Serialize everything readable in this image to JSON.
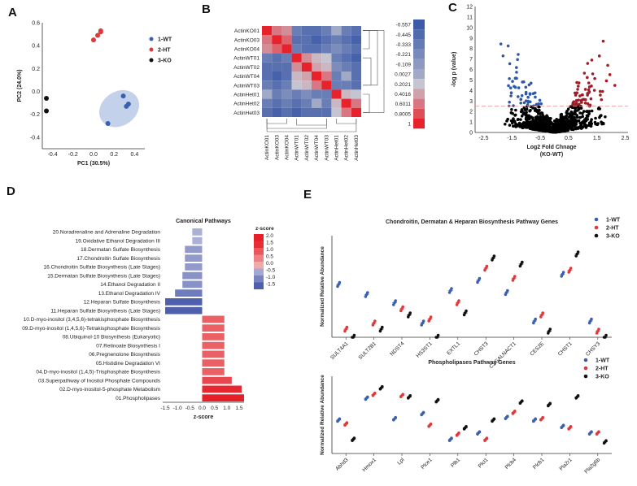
{
  "panel_labels": {
    "a": "A",
    "b": "B",
    "c": "C",
    "d": "D",
    "e": "E"
  },
  "colors": {
    "wt": "#3a5fb0",
    "ht": "#e0393b",
    "ko": "#111111",
    "heat_hi": "#e8222b",
    "heat_lo": "#3c5aa8"
  },
  "chart_data": [
    {
      "id": "pca",
      "type": "scatter",
      "xlabel": "PC1 (30.5%)",
      "ylabel": "PC2 (24.0%)",
      "xlim": [
        -0.5,
        0.5
      ],
      "ylim": [
        -0.5,
        0.6
      ],
      "xticks": [
        "-0.4",
        "-0.2",
        "0.0",
        "0.2",
        "0.4"
      ],
      "yticks": [
        "0.6",
        "0.4",
        "0.2",
        "0.0",
        "-0.2",
        "-0.4"
      ],
      "legend": [
        "1-WT",
        "2-HT",
        "3-KO"
      ],
      "series": [
        {
          "name": "1-WT",
          "points": [
            [
              0.29,
              -0.04
            ],
            [
              0.32,
              -0.13
            ],
            [
              0.34,
              -0.11
            ],
            [
              0.14,
              -0.28
            ]
          ]
        },
        {
          "name": "2-HT",
          "points": [
            [
              0.04,
              0.49
            ],
            [
              0.07,
              0.52
            ],
            [
              0.07,
              0.53
            ],
            [
              0.0,
              0.45
            ]
          ]
        },
        {
          "name": "3-KO",
          "points": [
            [
              -0.46,
              -0.06
            ],
            [
              -0.46,
              -0.17
            ]
          ]
        }
      ]
    },
    {
      "id": "heatmap",
      "type": "heatmap",
      "rows": [
        "ActinKO01",
        "ActinKO03",
        "ActinKO04",
        "ActinWT01",
        "ActinWT02",
        "ActinWT04",
        "ActinWT03",
        "ActinHet01",
        "ActinHet02",
        "ActinHet03"
      ],
      "cols": [
        "ActinKO01",
        "ActinKO03",
        "ActinKO04",
        "ActinWT01",
        "ActinWT02",
        "ActinWT04",
        "ActinWT03",
        "ActinHet01",
        "ActinHet02",
        "ActinHet03"
      ],
      "legend_labels": [
        "-0.557",
        "-0.445",
        "-0.333",
        "-0.221",
        "-0.109",
        "0.0027",
        "0.2021",
        "0.4016",
        "0.6011",
        "0.8005",
        "1"
      ],
      "values": [
        [
          1,
          0.6,
          0.5,
          -0.3,
          -0.4,
          -0.4,
          -0.3,
          0.0,
          -0.3,
          -0.4
        ],
        [
          0.6,
          1,
          0.7,
          -0.4,
          -0.4,
          -0.5,
          -0.4,
          -0.3,
          -0.4,
          -0.5
        ],
        [
          0.5,
          0.7,
          1,
          -0.3,
          -0.4,
          -0.4,
          -0.3,
          -0.2,
          -0.3,
          -0.4
        ],
        [
          -0.3,
          -0.4,
          -0.3,
          1,
          0.5,
          0.3,
          0.2,
          -0.3,
          -0.4,
          -0.5
        ],
        [
          -0.4,
          -0.4,
          -0.4,
          0.5,
          1,
          0.4,
          0.3,
          -0.2,
          -0.3,
          -0.4
        ],
        [
          -0.4,
          -0.5,
          -0.4,
          0.3,
          0.4,
          1,
          0.6,
          -0.3,
          0.0,
          -0.4
        ],
        [
          -0.3,
          -0.4,
          -0.3,
          0.2,
          0.3,
          0.6,
          1,
          -0.3,
          -0.3,
          -0.4
        ],
        [
          0.0,
          -0.3,
          -0.2,
          -0.3,
          -0.2,
          -0.3,
          -0.3,
          1,
          0.3,
          0.2
        ],
        [
          -0.3,
          -0.4,
          -0.3,
          -0.4,
          -0.3,
          0.0,
          -0.3,
          0.3,
          1,
          0.6
        ],
        [
          -0.4,
          -0.5,
          -0.4,
          -0.5,
          -0.4,
          -0.4,
          -0.4,
          0.2,
          0.6,
          1
        ]
      ]
    },
    {
      "id": "volcano",
      "type": "scatter",
      "xlabel": "Log2 Fold Chnage",
      "xlabel2": "(KO-WT)",
      "ylabel": "-log p (value)",
      "xlim": [
        -2.8,
        2.6
      ],
      "ylim": [
        0,
        12
      ],
      "xticks": [
        "-2.5",
        "-1.5",
        "-0.5",
        "0.5",
        "1.5",
        "2.5"
      ],
      "yticks": [
        "0",
        "1",
        "2",
        "3",
        "4",
        "5",
        "6",
        "7",
        "8",
        "9",
        "10",
        "11",
        "12"
      ],
      "threshold": 2.5
    },
    {
      "id": "canonical",
      "type": "bar",
      "title": "Canonical Pathways",
      "xlabel": "z-score",
      "legend_title": "z-score",
      "legend_ticks": [
        "2.0",
        "1.5",
        "1.0",
        "0.5",
        "0.0",
        "-0.5",
        "-1.0",
        "-1.5"
      ],
      "xticks": [
        "-1.5",
        "-1.0",
        "-0.5",
        "0.0",
        "0.5",
        "1.0",
        "1.5"
      ],
      "xlim": [
        -1.6,
        1.7
      ],
      "categories": [
        "20.Noradrenaline and Adrenaline Degradation",
        "19.Oxidative Ethanol Degradation III",
        "18.Dermatan Sulfate Biosynthesis",
        "17.Chondroitin Sulfate Biosynthesis",
        "16.Chondroitin Sulfate Biosynthesis (Late Stages)",
        "15.Dermatan Sulfate Biosynthesis (Late Stages)",
        "14.Ethanol Degradation II",
        "13.Ethanol Degradation IV",
        "12.Heparan Sulfate Biosynthesis",
        "11.Heparan Sulfate Biosynthesis (Late Stages)",
        "10.D-myo-inositol (3,4,5,6)-tetrakisphosphate Biosynthesis",
        "09.D-myo-inositol (1,4,5,6)-Tetrakisphosphate Biosynthesis",
        "08.Ubiquinol-10 Biosynthesis (Eukaryotic)",
        "07.Retinoate Biosynthesis I",
        "06.Pregnenolone Biosynthesis",
        "05.Histidine Degradation VI",
        "04.D-myo-inositol (1,4,5)-Trisphosphate Biosynthesis",
        "03.Superpathway of Inositol Phosphate Compounds",
        "02.D-myo-inositol-5-phosphate Metabolism",
        "01.Phospholipases"
      ],
      "values": [
        -0.4,
        -0.4,
        -0.7,
        -0.7,
        -0.7,
        -0.8,
        -0.8,
        -1.1,
        -1.5,
        -1.5,
        0.9,
        0.9,
        0.9,
        0.9,
        0.9,
        0.9,
        0.9,
        1.2,
        1.6,
        1.7
      ]
    },
    {
      "id": "chondroitin",
      "type": "scatter",
      "title": "Chondroitin, Dermatan & Heparan Biosynthesis Pathway Genes",
      "ylabel": "Normalized Relative Abundance",
      "legend": [
        "1-WT",
        "2-HT",
        "3-KO"
      ],
      "ylim": [
        0,
        2.5
      ],
      "categories": [
        "SULT4A1",
        "SULT2B1",
        "NDST4",
        "HS3ST1",
        "EXTL1",
        "CHST3",
        "CSGALNACT1",
        "CES2E",
        "CHST1",
        "CHSY3"
      ],
      "series": [
        {
          "name": "1-WT",
          "values": [
            1.3,
            1.05,
            0.85,
            0.35,
            1.15,
            1.4,
            1.1,
            0.4,
            1.55,
            0.4
          ]
        },
        {
          "name": "2-HT",
          "values": [
            0.2,
            0.35,
            0.7,
            0.45,
            0.85,
            1.7,
            1.45,
            0.55,
            1.65,
            0.15
          ]
        },
        {
          "name": "3-KO",
          "values": [
            0.0,
            0.2,
            0.55,
            0.0,
            0.6,
            1.95,
            1.8,
            0.15,
            2.05,
            0.0
          ]
        }
      ]
    },
    {
      "id": "phospholipases",
      "type": "scatter",
      "title": "Phospholipases Pathway Genes",
      "ylabel": "Normalized Relative Abundance",
      "legend": [
        "1-WT",
        "2-HT",
        "3-KO"
      ],
      "ylim": [
        0,
        3
      ],
      "categories": [
        "Abhd3",
        "Hmox1",
        "Lpl",
        "Plce1",
        "Plb1",
        "Plcl1",
        "Plcb4",
        "Plcb1",
        "Pla2r1",
        "Pla2g6b"
      ],
      "series": [
        {
          "name": "1-WT",
          "values": [
            1.3,
            2.15,
            1.35,
            1.55,
            0.55,
            0.8,
            1.4,
            1.3,
            1.05,
            0.8
          ]
        },
        {
          "name": "2-HT",
          "values": [
            1.15,
            2.3,
            2.25,
            1.1,
            0.75,
            0.55,
            1.6,
            1.35,
            1.0,
            0.8
          ]
        },
        {
          "name": "3-KO",
          "values": [
            0.55,
            2.55,
            2.2,
            2.05,
            1.0,
            1.3,
            2.0,
            1.9,
            2.2,
            0.45
          ]
        }
      ]
    }
  ]
}
